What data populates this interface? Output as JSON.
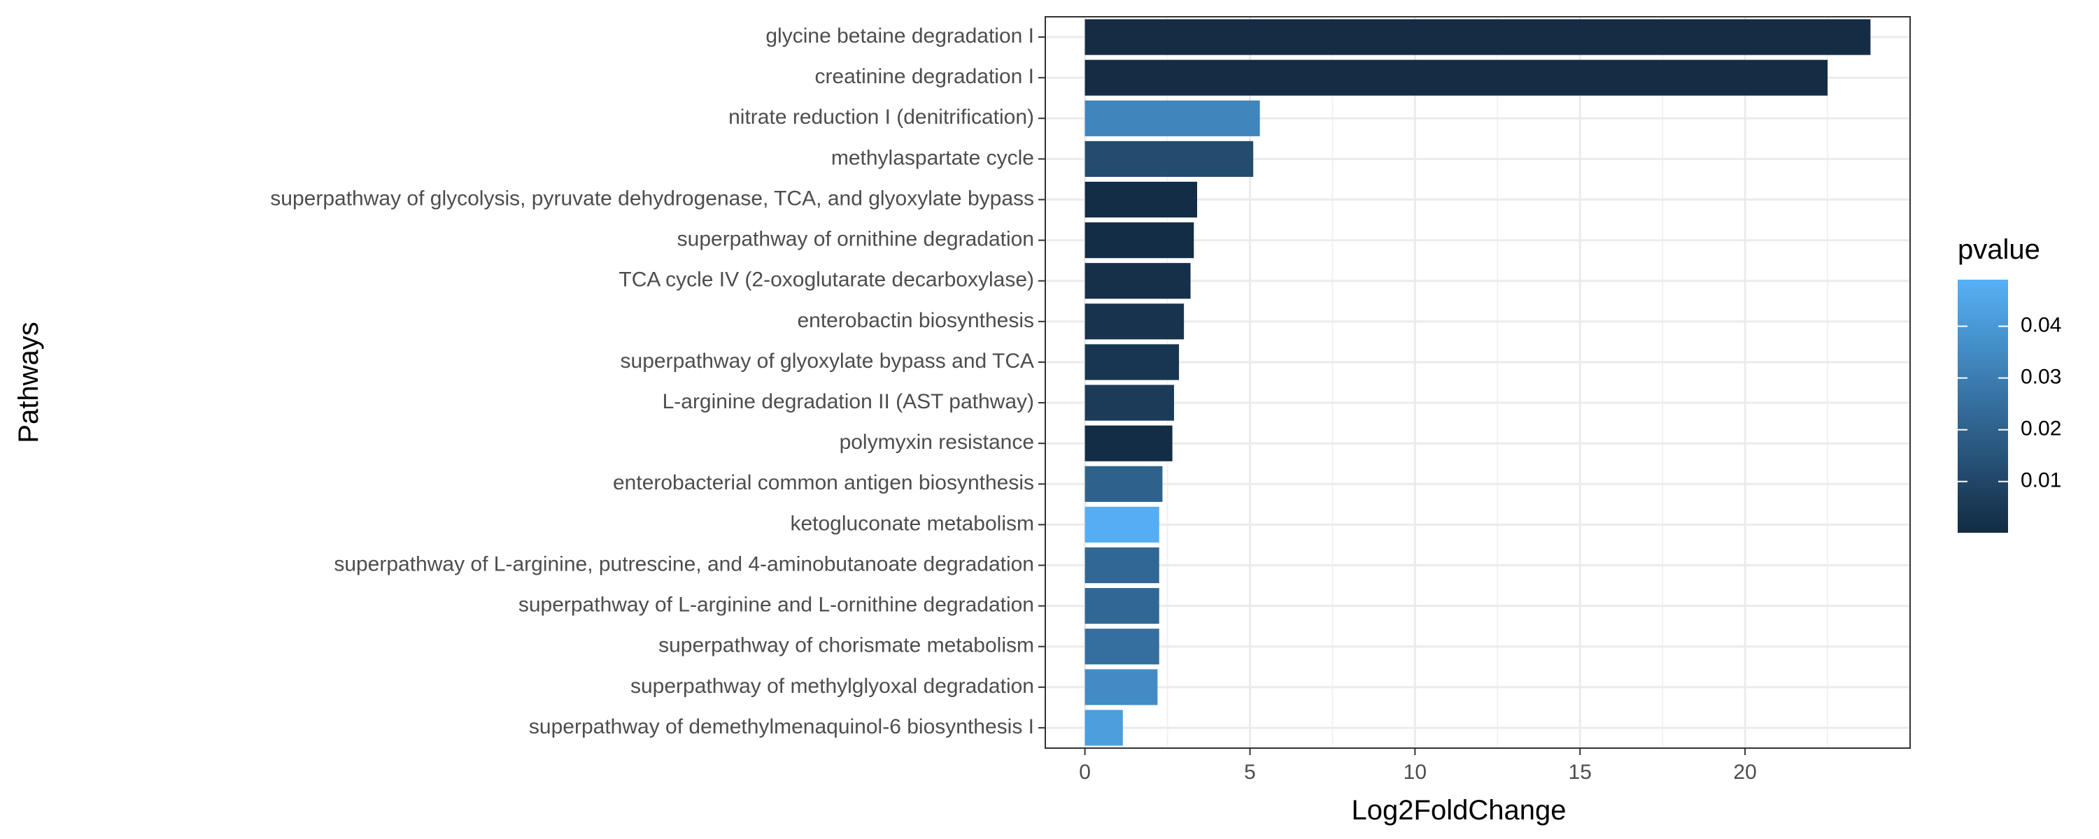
{
  "chart_data": {
    "type": "bar",
    "orientation": "horizontal",
    "title": "",
    "xlabel": "Log2FoldChange",
    "ylabel": "Pathways",
    "xlim": [
      -1.2,
      25.0
    ],
    "xticks": [
      0,
      5,
      10,
      15,
      20
    ],
    "grid": true,
    "legend": {
      "title": "pvalue",
      "placement": "right",
      "type": "colorbar",
      "range": [
        0.0001,
        0.049
      ],
      "ticks": [
        0.01,
        0.02,
        0.03,
        0.04
      ],
      "tick_labels": [
        "0.01",
        "0.02",
        "0.03",
        "0.04"
      ],
      "low_color": "#132b43",
      "high_color": "#56b1f7"
    },
    "categories": [
      "glycine betaine degradation I",
      "creatinine degradation I",
      "nitrate reduction I (denitrification)",
      "methylaspartate cycle",
      "superpathway of glycolysis, pyruvate dehydrogenase, TCA, and glyoxylate bypass",
      "superpathway of ornithine degradation",
      "TCA cycle IV (2-oxoglutarate decarboxylase)",
      "enterobactin biosynthesis",
      "superpathway of glyoxylate bypass and TCA",
      "L-arginine degradation II (AST pathway)",
      "polymyxin resistance",
      "enterobacterial common antigen biosynthesis",
      "ketogluconate metabolism",
      "superpathway of L-arginine, putrescine, and 4-aminobutanoate degradation",
      "superpathway of L-arginine and L-ornithine degradation",
      "superpathway of chorismate metabolism",
      "superpathway of methylglyoxal degradation",
      "superpathway of demethylmenaquinol-6 biosynthesis I"
    ],
    "values": [
      23.8,
      22.5,
      5.3,
      5.1,
      3.4,
      3.3,
      3.2,
      3.0,
      2.85,
      2.7,
      2.65,
      2.35,
      2.25,
      2.25,
      2.25,
      2.25,
      2.2,
      1.15
    ],
    "pvalues": [
      0.0005,
      0.0005,
      0.033,
      0.012,
      0.001,
      0.001,
      0.002,
      0.003,
      0.004,
      0.006,
      0.001,
      0.02,
      0.048,
      0.022,
      0.022,
      0.025,
      0.035,
      0.042
    ]
  }
}
